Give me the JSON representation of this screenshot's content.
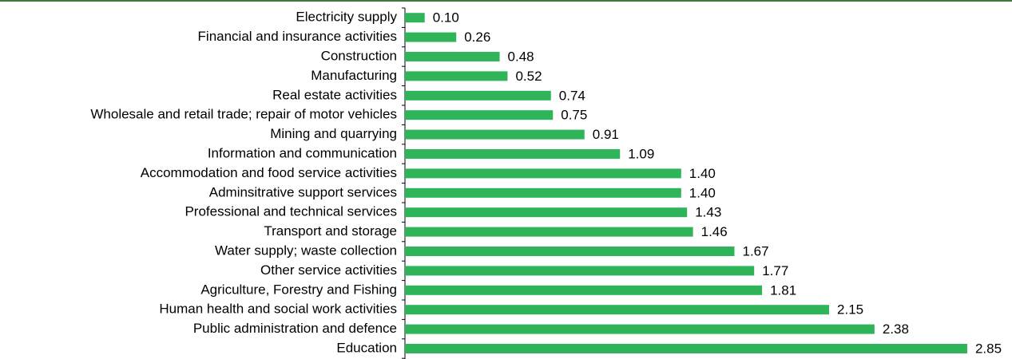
{
  "chart_data": {
    "type": "bar",
    "orientation": "horizontal",
    "categories": [
      "Electricity supply",
      "Financial and insurance activities",
      "Construction",
      "Manufacturing",
      "Real estate activities",
      "Wholesale and retail trade; repair of motor vehicles",
      "Mining and quarrying",
      "Information and communication",
      "Accommodation and food service activities",
      "Adminsitrative support services",
      "Professional and technical services",
      "Transport and storage",
      "Water supply; waste collection",
      "Other service activities",
      "Agriculture, Forestry and Fishing",
      "Human health and social work activities",
      "Public administration and defence",
      "Education"
    ],
    "values": [
      0.1,
      0.26,
      0.48,
      0.52,
      0.74,
      0.75,
      0.91,
      1.09,
      1.4,
      1.4,
      1.43,
      1.46,
      1.67,
      1.77,
      1.81,
      2.15,
      2.38,
      2.85
    ],
    "value_labels": [
      "0.10",
      "0.26",
      "0.48",
      "0.52",
      "0.74",
      "0.75",
      "0.91",
      "1.09",
      "1.40",
      "1.40",
      "1.43",
      "1.46",
      "1.67",
      "1.77",
      "1.81",
      "2.15",
      "2.38",
      "2.85"
    ],
    "color": "#2fb45a",
    "xlim": [
      0,
      3
    ]
  }
}
